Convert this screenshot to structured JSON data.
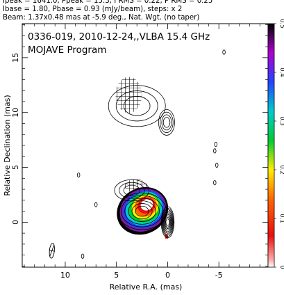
{
  "header": {
    "line1": "Ipeak = 1641.0, Ppeak = 15.3, I RMS = 0.22, P RMS = 0.25",
    "line2": "Ibase = 1.80, Pbase = 0.93 (mJy/beam), steps: x 2",
    "line3": "Beam: 1.37x0.48 mas at -5.9 deg., Nat. Wgt. (no taper)"
  },
  "chart_data": {
    "type": "heatmap",
    "title": "0336-019, 2010-12-24,,VLBA 15.4 GHz",
    "subtitle": "MOJAVE Program",
    "xlabel": "Relative R.A. (mas)",
    "ylabel": "Relative Declination (mas)",
    "xlim": [
      14.2,
      -9.8
    ],
    "ylim": [
      -4.1,
      18.1
    ],
    "x_ticks": [
      10,
      5,
      0,
      -5
    ],
    "x_tick_labels": [
      "10",
      "5",
      "0",
      "-5"
    ],
    "y_ticks": [
      0,
      5,
      10,
      15
    ],
    "y_tick_labels": [
      "0",
      "5",
      "10",
      "15"
    ],
    "grid": false,
    "colorbar": {
      "range": [
        0,
        0.5
      ],
      "ticks": [
        0,
        0.1,
        0.2,
        0.3,
        0.4,
        0.5
      ],
      "tick_labels": [
        "0",
        "0.1",
        "0.2",
        "0.3",
        "0.4",
        "0.5"
      ],
      "placement": "right"
    },
    "core": {
      "ra": 0,
      "dec": 0
    },
    "contour_components": [
      {
        "name": "core",
        "ra": 0.0,
        "dec": 0.0,
        "sx": 0.55,
        "sy": 1.35,
        "levels": 9
      },
      {
        "name": "inner-jet",
        "ra": 2.5,
        "dec": 1.0,
        "sx": 2.3,
        "sy": 1.6,
        "levels": 6
      },
      {
        "name": "jet-tail",
        "ra": 3.5,
        "dec": 2.9,
        "sx": 1.6,
        "sy": 0.9,
        "levels": 3
      },
      {
        "name": "north-knot",
        "ra": 0.1,
        "dec": 9.1,
        "sx": 0.7,
        "sy": 1.1,
        "levels": 4
      },
      {
        "name": "north-plume",
        "ra": 3.0,
        "dec": 10.6,
        "sx": 2.7,
        "sy": 1.8,
        "levels": 3
      }
    ],
    "polarization_patch": {
      "ra": 2.4,
      "dec": 1.2,
      "colors_outer_to_inner": [
        "#000000",
        "#7a1d9e",
        "#2244ff",
        "#00cccc",
        "#00cc33",
        "#ffee00",
        "#ff6600",
        "#e81010",
        "#ffffff"
      ]
    },
    "polarization_spot": {
      "ra": 0.1,
      "dec": -1.3
    },
    "hatched_regions": [
      {
        "name": "north-hatch",
        "ra": 3.8,
        "dec": 11.6
      },
      {
        "name": "south-hatch",
        "ra": 3.1,
        "dec": 3.3
      }
    ],
    "small_sources": [
      {
        "ra": -5.5,
        "dec": 15.5
      },
      {
        "ra": 8.7,
        "dec": 4.3
      },
      {
        "ra": 7.0,
        "dec": 1.6
      },
      {
        "ra": -4.6,
        "dec": 3.6
      },
      {
        "ra": -4.8,
        "dec": 5.2
      },
      {
        "ra": -4.6,
        "dec": 6.5
      },
      {
        "ra": -4.7,
        "dec": 7.1
      },
      {
        "ra": 8.3,
        "dec": -3.1
      }
    ],
    "beam": {
      "ra": 11.3,
      "dec": -2.6,
      "major": 1.37,
      "minor": 0.48,
      "pa_deg": -5.9
    }
  }
}
